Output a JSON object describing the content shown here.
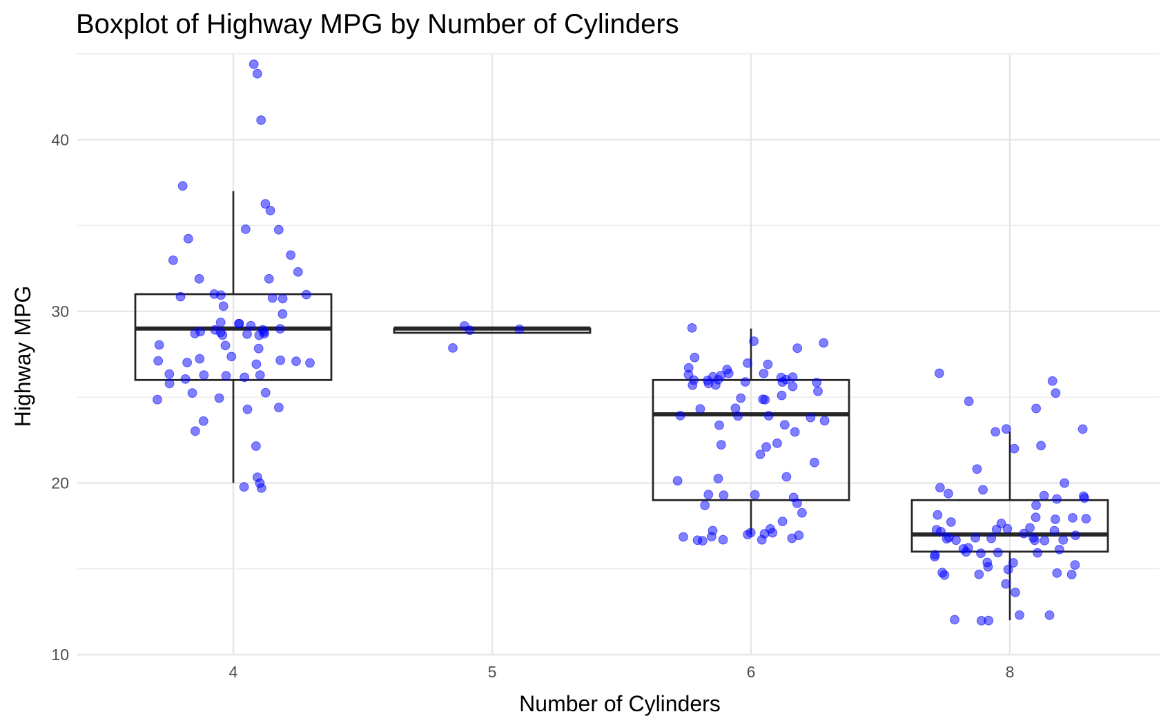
{
  "chart_data": {
    "type": "boxplot",
    "title": "Boxplot of Highway MPG by Number of Cylinders",
    "xlabel": "Number of Cylinders",
    "ylabel": "Highway MPG",
    "categories": [
      "4",
      "5",
      "6",
      "8"
    ],
    "y_ticks": [
      10,
      20,
      30,
      40
    ],
    "ylim": [
      10,
      45
    ],
    "grid": true,
    "point_color": "#0000ff",
    "box_color": "#262626",
    "boxes": [
      {
        "category": "4",
        "whisker_low": 20,
        "q1": 26,
        "median": 29,
        "q3": 31,
        "whisker_high": 37
      },
      {
        "category": "5",
        "whisker_low": 28.75,
        "q1": 28.75,
        "median": 29,
        "q3": 29,
        "whisker_high": 29
      },
      {
        "category": "6",
        "whisker_low": 17,
        "q1": 19,
        "median": 24,
        "q3": 26,
        "whisker_high": 29
      },
      {
        "category": "8",
        "whisker_low": 12,
        "q1": 16,
        "median": 17,
        "q3": 19,
        "whisker_high": 23
      }
    ],
    "points": [
      {
        "category": "4",
        "values": [
          44,
          44,
          41,
          37,
          36,
          36,
          35,
          35,
          34,
          33,
          33,
          32,
          32,
          32,
          31,
          31,
          31,
          31,
          31,
          31,
          30,
          30,
          29,
          29,
          29,
          29,
          29,
          29,
          29,
          29,
          29,
          29,
          29,
          29,
          29,
          29,
          29,
          28,
          28,
          28,
          27,
          27,
          27,
          27,
          27,
          27,
          27,
          27,
          26,
          26,
          26,
          26,
          26,
          26,
          26,
          25,
          25,
          25,
          25,
          24,
          24,
          24,
          23,
          22,
          20,
          20,
          20,
          20
        ]
      },
      {
        "category": "5",
        "values": [
          29,
          29,
          29,
          28
        ]
      },
      {
        "category": "6",
        "values": [
          29,
          28,
          28,
          28,
          27,
          27,
          27,
          27,
          27,
          26,
          26,
          26,
          26,
          26,
          26,
          26,
          26,
          26,
          26,
          26,
          26,
          26,
          26,
          26,
          26,
          26,
          26,
          25,
          25,
          25,
          25,
          25,
          24,
          24,
          24,
          24,
          24,
          24,
          24,
          23,
          23,
          23,
          22,
          22,
          22,
          22,
          21,
          20,
          20,
          20,
          19,
          19,
          19,
          19,
          19,
          19,
          18,
          18,
          17,
          17,
          17,
          17,
          17,
          17,
          17,
          17,
          17,
          17,
          17,
          17,
          17,
          17
        ]
      },
      {
        "category": "8",
        "values": [
          26,
          26,
          25,
          25,
          24,
          23,
          23,
          23,
          22,
          22,
          21,
          20,
          20,
          20,
          19,
          19,
          19,
          19,
          19,
          19,
          18,
          18,
          18,
          18,
          18,
          18,
          18,
          17,
          17,
          17,
          17,
          17,
          17,
          17,
          17,
          17,
          17,
          17,
          17,
          17,
          17,
          17,
          17,
          17,
          16,
          16,
          16,
          16,
          16,
          16,
          16,
          16,
          16,
          15,
          15,
          15,
          15,
          15,
          15,
          15,
          15,
          15,
          15,
          14,
          14,
          12,
          12,
          12,
          12,
          12
        ]
      }
    ]
  }
}
